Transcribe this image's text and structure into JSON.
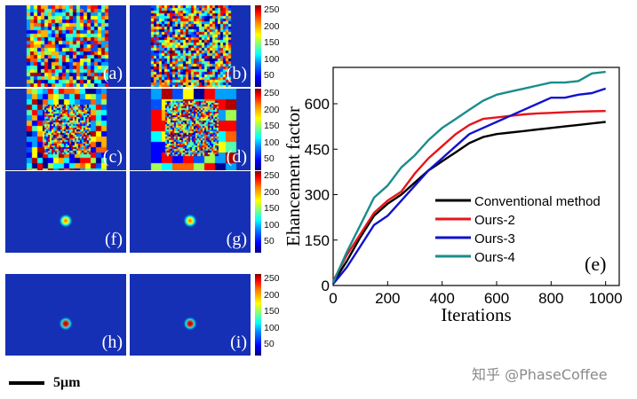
{
  "panels": [
    {
      "label": "(a)",
      "kind": "noise-full"
    },
    {
      "label": "(b)",
      "kind": "noise-fine"
    },
    {
      "label": "(c)",
      "kind": "noise-mixed"
    },
    {
      "label": "(d)",
      "kind": "noise-coarse"
    },
    {
      "label": "(f)",
      "kind": "spot"
    },
    {
      "label": "(g)",
      "kind": "spot"
    },
    {
      "label": "(h)",
      "kind": "spot-red"
    },
    {
      "label": "(i)",
      "kind": "spot-red"
    }
  ],
  "colorbar": {
    "ticks": [
      "250",
      "200",
      "150",
      "100",
      "50"
    ]
  },
  "scalebar": {
    "label": "5μm"
  },
  "watermark": "知乎 @PhaseCoffee",
  "chart_data": {
    "type": "line",
    "title": "",
    "xlabel": "Iterations",
    "ylabel": "Ehancement factor",
    "xlim": [
      0,
      1050
    ],
    "ylim": [
      0,
      720
    ],
    "xticks": [
      0,
      200,
      400,
      600,
      800,
      1000
    ],
    "yticks": [
      0,
      150,
      300,
      450,
      600
    ],
    "annotation": "(e)",
    "legend_position": "lower-right",
    "series": [
      {
        "name": "Conventional method",
        "color": "#000000",
        "x": [
          0,
          50,
          100,
          150,
          200,
          250,
          300,
          350,
          400,
          450,
          500,
          550,
          600,
          650,
          700,
          750,
          800,
          850,
          900,
          950,
          1000
        ],
        "y": [
          10,
          80,
          160,
          230,
          270,
          300,
          340,
          380,
          410,
          440,
          470,
          490,
          500,
          505,
          510,
          515,
          520,
          525,
          530,
          535,
          540
        ]
      },
      {
        "name": "Ours-2",
        "color": "#e8141b",
        "x": [
          0,
          50,
          100,
          150,
          200,
          250,
          300,
          350,
          400,
          450,
          500,
          550,
          600,
          650,
          700,
          750,
          800,
          850,
          900,
          950,
          1000
        ],
        "y": [
          15,
          100,
          170,
          240,
          280,
          310,
          370,
          420,
          460,
          500,
          530,
          550,
          555,
          560,
          565,
          568,
          570,
          572,
          574,
          575,
          576
        ]
      },
      {
        "name": "Ours-3",
        "color": "#1212cc",
        "x": [
          0,
          50,
          100,
          150,
          200,
          250,
          300,
          350,
          400,
          450,
          500,
          550,
          600,
          650,
          700,
          750,
          800,
          850,
          900,
          950,
          1000
        ],
        "y": [
          5,
          60,
          130,
          200,
          230,
          280,
          330,
          380,
          420,
          460,
          500,
          520,
          540,
          560,
          580,
          600,
          620,
          620,
          630,
          635,
          650
        ]
      },
      {
        "name": "Ours-4",
        "color": "#1a8c8c",
        "x": [
          0,
          50,
          100,
          150,
          200,
          250,
          300,
          350,
          400,
          450,
          500,
          550,
          600,
          650,
          700,
          750,
          800,
          850,
          900,
          950,
          1000
        ],
        "y": [
          10,
          110,
          200,
          290,
          330,
          390,
          430,
          480,
          520,
          550,
          580,
          610,
          630,
          640,
          650,
          660,
          670,
          670,
          675,
          700,
          705
        ]
      }
    ]
  }
}
